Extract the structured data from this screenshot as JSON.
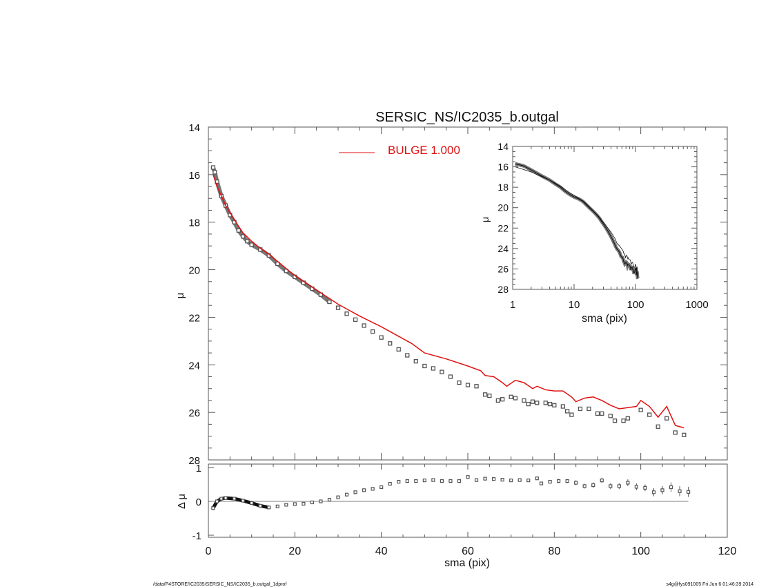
{
  "colors": {
    "data": "#555555",
    "model": "#e01010",
    "axis": "#555555"
  },
  "footer": {
    "path": "/data/P4STORE/IC2035/SERSIC_NS/IC2035_b.outgal_1dprof",
    "stamp": "s4g@fys091005  Fri Jun  6 01:46:39 2014"
  },
  "chart_data": [
    {
      "type": "scatter",
      "title": "SERSIC_NS/IC2035_b.outgal",
      "xlabel": "sma (pix)",
      "ylabel": "μ",
      "xlim": [
        0,
        120
      ],
      "ylim": [
        28,
        14
      ],
      "xticks": [
        "0",
        "20",
        "40",
        "60",
        "80",
        "100",
        "120"
      ],
      "yticks": [
        "14",
        "16",
        "18",
        "20",
        "22",
        "24",
        "26",
        "28"
      ],
      "legend": {
        "label": "BULGE  1.000",
        "placement": "top-center"
      },
      "series": [
        {
          "name": "profile",
          "style": "squares",
          "x": [
            1.1,
            1.5,
            2,
            3,
            4,
            5,
            6,
            7,
            8,
            9,
            10,
            12,
            14,
            16,
            18,
            20,
            22,
            24,
            26,
            28,
            30,
            32,
            34,
            36,
            38,
            40,
            42,
            44,
            46,
            48,
            50,
            52,
            54,
            56,
            58,
            60,
            62,
            64,
            65,
            67,
            68,
            70,
            71,
            73,
            74,
            75,
            76,
            78,
            79,
            80,
            82,
            83,
            84,
            86,
            88,
            90,
            91,
            93,
            94,
            96,
            97,
            100,
            102,
            104,
            106,
            108,
            110
          ],
          "y": [
            15.7,
            15.9,
            16.3,
            16.9,
            17.3,
            17.7,
            18.0,
            18.35,
            18.6,
            18.8,
            18.95,
            19.15,
            19.4,
            19.75,
            20.05,
            20.3,
            20.55,
            20.8,
            21.05,
            21.35,
            21.6,
            21.85,
            22.1,
            22.35,
            22.6,
            22.85,
            23.1,
            23.35,
            23.6,
            23.85,
            24.05,
            24.15,
            24.3,
            24.5,
            24.75,
            24.85,
            24.9,
            25.25,
            25.3,
            25.5,
            25.45,
            25.35,
            25.4,
            25.5,
            25.65,
            25.55,
            25.6,
            25.6,
            25.65,
            25.7,
            25.75,
            25.95,
            26.1,
            25.85,
            25.85,
            26.05,
            26.05,
            26.15,
            26.35,
            26.35,
            26.25,
            25.9,
            26.1,
            26.6,
            26.25,
            26.85,
            26.95
          ]
        },
        {
          "name": "BULGE  1.000",
          "style": "line",
          "x": [
            1.1,
            2,
            4,
            6,
            8,
            10,
            12,
            14,
            16,
            18,
            20,
            25,
            30,
            35,
            40,
            45,
            47,
            50,
            55,
            60,
            63,
            64,
            66,
            68,
            69,
            71,
            73,
            75,
            76,
            78,
            80,
            82,
            84,
            85,
            87,
            89,
            91,
            93,
            95,
            97,
            99,
            100,
            102,
            104,
            106,
            108,
            110
          ],
          "y": [
            16.0,
            16.5,
            17.3,
            17.9,
            18.45,
            18.8,
            19.1,
            19.35,
            19.65,
            19.95,
            20.25,
            20.85,
            21.45,
            21.95,
            22.4,
            22.9,
            23.1,
            23.5,
            23.75,
            24.05,
            24.25,
            24.45,
            24.5,
            24.75,
            24.9,
            24.65,
            24.75,
            25.0,
            24.9,
            25.05,
            25.1,
            25.1,
            25.35,
            25.55,
            25.4,
            25.35,
            25.5,
            25.7,
            25.85,
            25.8,
            25.75,
            25.5,
            25.75,
            26.2,
            25.75,
            26.55,
            26.65
          ]
        }
      ]
    },
    {
      "type": "scatter",
      "xlabel": "sma (pix)",
      "ylabel": "Δ μ",
      "xlim": [
        0,
        120
      ],
      "ylim": [
        -1,
        1
      ],
      "yticks": [
        "1",
        "0",
        "-1"
      ],
      "series": [
        {
          "name": "residual",
          "x": [
            1.1,
            2,
            3,
            4,
            6,
            8,
            10,
            12,
            14,
            16,
            18,
            20,
            22,
            24,
            26,
            28,
            30,
            32,
            34,
            36,
            38,
            40,
            42,
            44,
            46,
            48,
            50,
            52,
            54,
            56,
            58,
            60,
            62,
            64,
            66,
            68,
            70,
            72,
            74,
            76,
            77,
            79,
            81,
            83,
            85,
            87,
            89,
            91,
            93,
            95,
            97,
            99,
            101,
            103,
            105,
            107,
            109,
            111
          ],
          "y": [
            -0.2,
            0.0,
            0.08,
            0.1,
            0.08,
            0.02,
            -0.05,
            -0.13,
            -0.18,
            -0.15,
            -0.1,
            -0.08,
            -0.07,
            -0.03,
            0.0,
            0.05,
            0.12,
            0.2,
            0.27,
            0.33,
            0.37,
            0.42,
            0.52,
            0.58,
            0.6,
            0.6,
            0.62,
            0.63,
            0.6,
            0.6,
            0.6,
            0.72,
            0.63,
            0.67,
            0.66,
            0.64,
            0.62,
            0.63,
            0.62,
            0.68,
            0.53,
            0.58,
            0.6,
            0.6,
            0.55,
            0.45,
            0.48,
            0.62,
            0.45,
            0.45,
            0.55,
            0.43,
            0.4,
            0.27,
            0.33,
            0.42,
            0.3,
            0.28
          ],
          "err": [
            0,
            0,
            0,
            0,
            0,
            0,
            0,
            0,
            0,
            0,
            0,
            0,
            0,
            0,
            0,
            0,
            0,
            0,
            0,
            0,
            0,
            0,
            0,
            0,
            0,
            0,
            0,
            0,
            0,
            0,
            0,
            0,
            0,
            0,
            0,
            0,
            0,
            0,
            0,
            0,
            0.05,
            0.05,
            0.06,
            0.06,
            0.07,
            0.07,
            0.08,
            0.08,
            0.09,
            0.09,
            0.1,
            0.1,
            0.1,
            0.12,
            0.12,
            0.14,
            0.15,
            0.15
          ]
        }
      ]
    },
    {
      "type": "scatter",
      "xlabel": "sma (pix)",
      "ylabel": "μ",
      "xscale": "log",
      "xlim": [
        1,
        1000
      ],
      "ylim": [
        28,
        14
      ],
      "xticks": [
        "1",
        "10",
        "100",
        "1000"
      ],
      "yticks": [
        "14",
        "16",
        "18",
        "20",
        "22",
        "24",
        "26",
        "28"
      ],
      "series_ref": "profile"
    }
  ]
}
